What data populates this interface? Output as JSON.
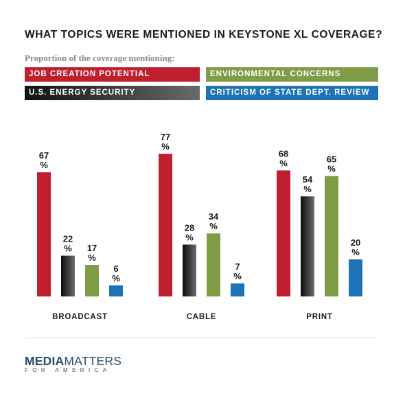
{
  "header": {
    "title": "WHAT TOPICS WERE MENTIONED IN KEYSTONE XL COVERAGE?",
    "subtitle": "Proportion of the coverage mentioning:"
  },
  "legend": [
    {
      "label": "JOB CREATION POTENTIAL",
      "color": "#c0202e"
    },
    {
      "label": "ENVIRONMENTAL CONCERNS",
      "color": "#7f9c46"
    },
    {
      "label": "U.S. ENERGY SECURITY",
      "color": "#2c2c2c"
    },
    {
      "label": "CRITICISM OF STATE DEPT. REVIEW",
      "color": "#1d73b6"
    }
  ],
  "chart_data": {
    "type": "bar",
    "categories": [
      "BROADCAST",
      "CABLE",
      "PRINT"
    ],
    "series": [
      {
        "name": "JOB CREATION POTENTIAL",
        "color": "#c0202e",
        "values": [
          67,
          77,
          68
        ]
      },
      {
        "name": "U.S. ENERGY SECURITY",
        "color": "#2c2c2c",
        "values": [
          22,
          28,
          54
        ]
      },
      {
        "name": "ENVIRONMENTAL CONCERNS",
        "color": "#7f9c46",
        "values": [
          17,
          34,
          65
        ]
      },
      {
        "name": "CRITICISM OF STATE DEPT. REVIEW",
        "color": "#1d73b6",
        "values": [
          6,
          7,
          20
        ]
      }
    ],
    "value_suffix": "%",
    "ylim": [
      0,
      80
    ],
    "grid": false
  },
  "footer": {
    "logo_bold": "MEDIA",
    "logo_light": "MATTERS",
    "logo_sub": "FOR AMERICA"
  }
}
